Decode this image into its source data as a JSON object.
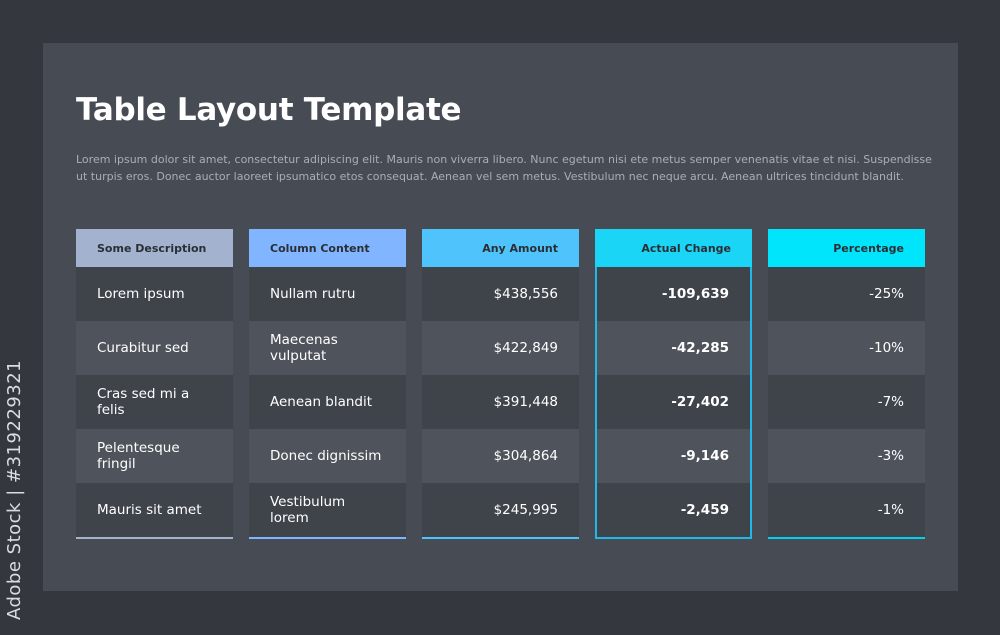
{
  "title": "Table Layout Template",
  "description": "Lorem ipsum dolor sit amet, consectetur adipiscing elit. Mauris non viverra libero. Nunc egetum nisi ete metus semper venenatis vitae et nisi. Suspendisse ut turpis eros. Donec auctor laoreet ipsumatico etos consequat. Aenean vel sem metus. Vestibulum nec neque arcu. Aenean ultrices tincidunt blandit.",
  "columns": [
    {
      "header": "Some Description",
      "header_color": "#a3b3cf",
      "line_color": "#a3b3cf",
      "cells": [
        "Lorem ipsum",
        "Curabitur sed",
        "Cras sed mi a felis",
        "Pelentesque fringil",
        "Mauris sit amet"
      ]
    },
    {
      "header": "Column Content",
      "header_color": "#82b5ff",
      "line_color": "#82b5ff",
      "cells": [
        "Nullam rutru",
        "Maecenas vulputat",
        "Aenean blandit",
        "Donec dignissim",
        "Vestibulum lorem"
      ]
    },
    {
      "header": "Any Amount",
      "header_color": "#4fc3fb",
      "line_color": "#4fc3fb",
      "cells": [
        "$438,556",
        "$422,849",
        "$391,448",
        "$304,864",
        "$245,995"
      ]
    },
    {
      "header": "Actual Change",
      "header_color": "#1ad5f6",
      "line_color": "#1fb8e8",
      "cells": [
        "-109,639",
        "-42,285",
        "-27,402",
        "-9,146",
        "-2,459"
      ]
    },
    {
      "header": "Percentage",
      "header_color": "#00e5fb",
      "line_color": "#00d0f0",
      "cells": [
        "-25%",
        "-10%",
        "-7%",
        "-3%",
        "-1%"
      ]
    }
  ],
  "watermark": "Adobe Stock | #319229321"
}
